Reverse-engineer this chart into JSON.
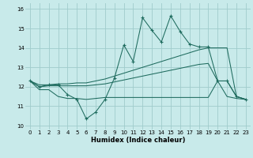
{
  "xlabel": "Humidex (Indice chaleur)",
  "xlim": [
    -0.5,
    23.5
  ],
  "ylim": [
    9.8,
    16.3
  ],
  "yticks": [
    10,
    11,
    12,
    13,
    14,
    15,
    16
  ],
  "xticks": [
    0,
    1,
    2,
    3,
    4,
    5,
    6,
    7,
    8,
    9,
    10,
    11,
    12,
    13,
    14,
    15,
    16,
    17,
    18,
    19,
    20,
    21,
    22,
    23
  ],
  "bg_color": "#c8eaea",
  "line_color": "#1e6b5e",
  "grid_color": "#a0cccc",
  "series_main": [
    12.3,
    12.0,
    12.1,
    12.1,
    11.6,
    11.35,
    10.35,
    10.7,
    11.35,
    12.45,
    14.15,
    13.3,
    15.55,
    14.9,
    14.3,
    15.65,
    14.85,
    14.2,
    14.05,
    14.05,
    12.3,
    12.3,
    11.5,
    11.35
  ],
  "series_upper": [
    12.3,
    12.1,
    12.1,
    12.15,
    12.15,
    12.2,
    12.2,
    12.3,
    12.4,
    12.55,
    12.7,
    12.85,
    13.0,
    13.15,
    13.3,
    13.45,
    13.6,
    13.75,
    13.9,
    14.0,
    14.0,
    14.0,
    11.5,
    11.35
  ],
  "series_middle": [
    12.3,
    12.0,
    12.05,
    12.05,
    12.05,
    12.05,
    12.05,
    12.1,
    12.15,
    12.25,
    12.35,
    12.45,
    12.55,
    12.65,
    12.75,
    12.85,
    12.95,
    13.05,
    13.15,
    13.2,
    12.3,
    12.3,
    11.5,
    11.35
  ],
  "series_lower": [
    12.3,
    11.85,
    11.85,
    11.5,
    11.4,
    11.4,
    11.35,
    11.4,
    11.45,
    11.45,
    11.45,
    11.45,
    11.45,
    11.45,
    11.45,
    11.45,
    11.45,
    11.45,
    11.45,
    11.45,
    12.3,
    11.5,
    11.4,
    11.35
  ]
}
